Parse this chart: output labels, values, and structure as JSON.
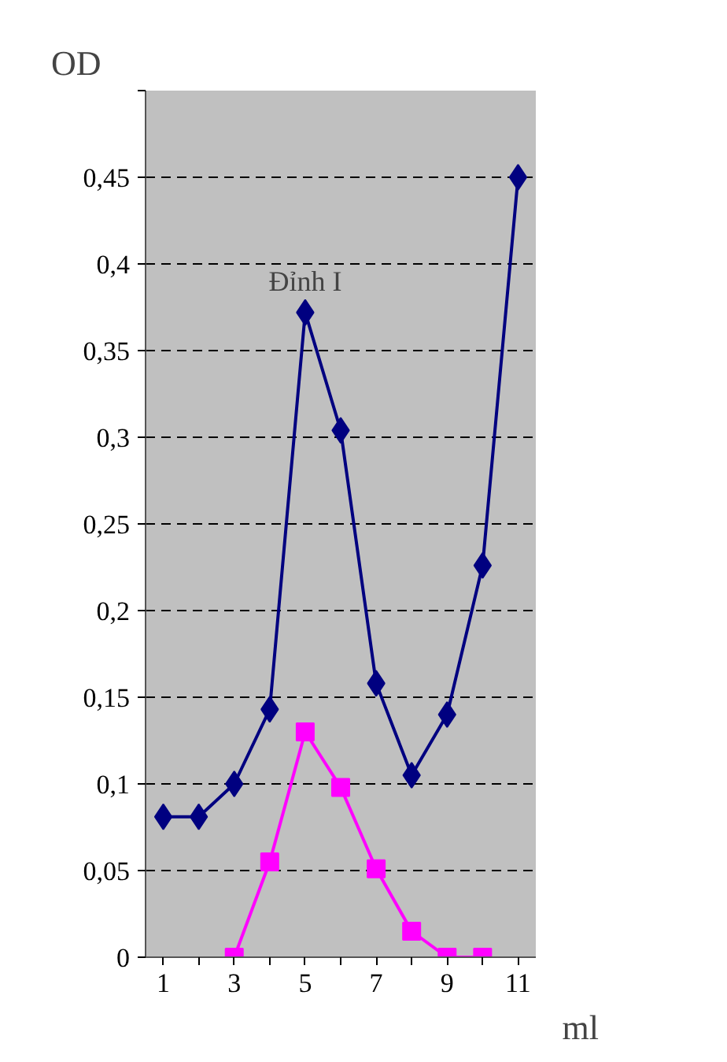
{
  "chart_data": {
    "type": "line",
    "ylabel": "OD",
    "xlabel": "ml",
    "categories": [
      "1",
      null,
      "3",
      null,
      "5",
      null,
      "7",
      null,
      "9",
      null,
      "11"
    ],
    "series": [
      {
        "color": "#000080",
        "marker": "diamond",
        "values": [
          0.081,
          0.081,
          0.1,
          0.143,
          0.372,
          0.304,
          0.158,
          0.105,
          0.14,
          0.226,
          0.45
        ]
      },
      {
        "color": "#ff00ff",
        "marker": "square",
        "values": [
          null,
          null,
          0,
          0.055,
          0.13,
          0.098,
          0.051,
          0.015,
          0,
          0,
          null
        ]
      }
    ],
    "ylim": [
      0,
      0.5
    ],
    "yticks": [
      {
        "value": 0,
        "label": "0"
      },
      {
        "value": 0.05,
        "label": "0,05"
      },
      {
        "value": 0.1,
        "label": "0,1"
      },
      {
        "value": 0.15,
        "label": "0,15"
      },
      {
        "value": 0.2,
        "label": "0,2"
      },
      {
        "value": 0.25,
        "label": "0,25"
      },
      {
        "value": 0.3,
        "label": "0,3"
      },
      {
        "value": 0.35,
        "label": "0,35"
      },
      {
        "value": 0.4,
        "label": "0,4"
      },
      {
        "value": 0.45,
        "label": "0,45"
      },
      {
        "value": 0.5,
        "label": null
      }
    ],
    "grid": "y",
    "annotations": [
      {
        "text": "Đỉnh I",
        "x": "5",
        "y": 0.372
      }
    ]
  }
}
